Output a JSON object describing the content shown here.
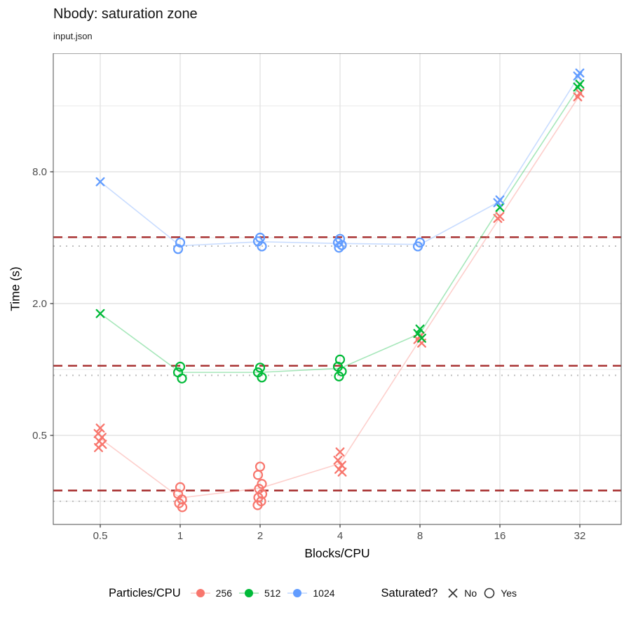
{
  "title": "Nbody: saturation zone",
  "subtitle": "input.json",
  "chart_data": {
    "type": "scatter",
    "title": "Nbody: saturation zone",
    "subtitle": "input.json",
    "xlabel": "Blocks/CPU",
    "ylabel": "Time (s)",
    "x_scale": "log2",
    "y_scale": "log2",
    "x_ticks": [
      0.5,
      1,
      2,
      4,
      8,
      16,
      32
    ],
    "x_tick_labels": [
      "0.5",
      "1",
      "2",
      "4",
      "8",
      "16",
      "32"
    ],
    "y_ticks": [
      8.0,
      2.0,
      0.5
    ],
    "y_tick_labels": [
      "8.0",
      "2.0",
      "0.5"
    ],
    "y_minor_gridlines": [
      16,
      4,
      1,
      0.25
    ],
    "grid": true,
    "series": [
      {
        "name": "256",
        "color": "#F8766D",
        "groups": [
          {
            "x": 0.5,
            "saturated": "No",
            "times": [
              0.54,
              0.51,
              0.49,
              0.47,
              0.455,
              0.44
            ]
          },
          {
            "x": 1,
            "saturated": "Yes",
            "times": [
              0.29,
              0.27,
              0.255,
              0.245,
              0.235
            ]
          },
          {
            "x": 2,
            "saturated": "Yes",
            "times": [
              0.36,
              0.33,
              0.3,
              0.285,
              0.27,
              0.26,
              0.25,
              0.24
            ]
          },
          {
            "x": 4,
            "saturated": "No",
            "times": [
              0.42,
              0.385,
              0.365,
              0.35,
              0.34
            ]
          },
          {
            "x": 8,
            "saturated": "No",
            "times": [
              1.42,
              1.37,
              1.32
            ]
          },
          {
            "x": 16,
            "saturated": "No",
            "times": [
              5.0,
              4.9
            ]
          },
          {
            "x": 32,
            "saturated": "No",
            "times": [
              18.3,
              17.6
            ]
          }
        ]
      },
      {
        "name": "512",
        "color": "#00BA38",
        "groups": [
          {
            "x": 0.5,
            "saturated": "No",
            "times": [
              1.8
            ]
          },
          {
            "x": 1,
            "saturated": "Yes",
            "times": [
              1.03,
              0.97,
              0.91
            ]
          },
          {
            "x": 2,
            "saturated": "Yes",
            "times": [
              1.02,
              0.97,
              0.92
            ]
          },
          {
            "x": 4,
            "saturated": "Yes",
            "times": [
              1.11,
              1.03,
              0.98,
              0.93
            ]
          },
          {
            "x": 8,
            "saturated": "No",
            "times": [
              1.53,
              1.46,
              1.39
            ]
          },
          {
            "x": 16,
            "saturated": "No",
            "times": [
              5.5
            ]
          },
          {
            "x": 32,
            "saturated": "No",
            "times": [
              20.1,
              19.5
            ]
          }
        ]
      },
      {
        "name": "1024",
        "color": "#619CFF",
        "groups": [
          {
            "x": 0.5,
            "saturated": "No",
            "times": [
              7.2
            ]
          },
          {
            "x": 1,
            "saturated": "Yes",
            "times": [
              3.8,
              3.55
            ]
          },
          {
            "x": 2,
            "saturated": "Yes",
            "times": [
              4.0,
              3.85,
              3.65
            ]
          },
          {
            "x": 4,
            "saturated": "Yes",
            "times": [
              3.95,
              3.8,
              3.7,
              3.6
            ]
          },
          {
            "x": 8,
            "saturated": "Yes",
            "times": [
              3.8,
              3.65
            ]
          },
          {
            "x": 16,
            "saturated": "No",
            "times": [
              5.95,
              5.78
            ]
          },
          {
            "x": 32,
            "saturated": "No",
            "times": [
              22.6,
              21.9
            ]
          }
        ]
      }
    ],
    "reference_lines": [
      {
        "style": "dashed",
        "color": "#A52A2A",
        "values": [
          4.02,
          1.04,
          0.28
        ]
      },
      {
        "style": "dotted",
        "color": "#BEBEBE",
        "values": [
          3.66,
          0.94,
          0.25
        ]
      }
    ],
    "color_legend": {
      "title": "Particles/CPU",
      "entries": [
        "256",
        "512",
        "1024"
      ]
    },
    "shape_legend": {
      "title": "Saturated?",
      "entries": [
        {
          "label": "No",
          "shape": "x"
        },
        {
          "label": "Yes",
          "shape": "circle"
        }
      ]
    },
    "legend_position": "bottom",
    "colors": {
      "panel_border": "#5c5c5c",
      "grid_major": "#e3e3e3",
      "grid_minor": "#eeeeee",
      "tick_label": "#4d4d4d"
    }
  }
}
